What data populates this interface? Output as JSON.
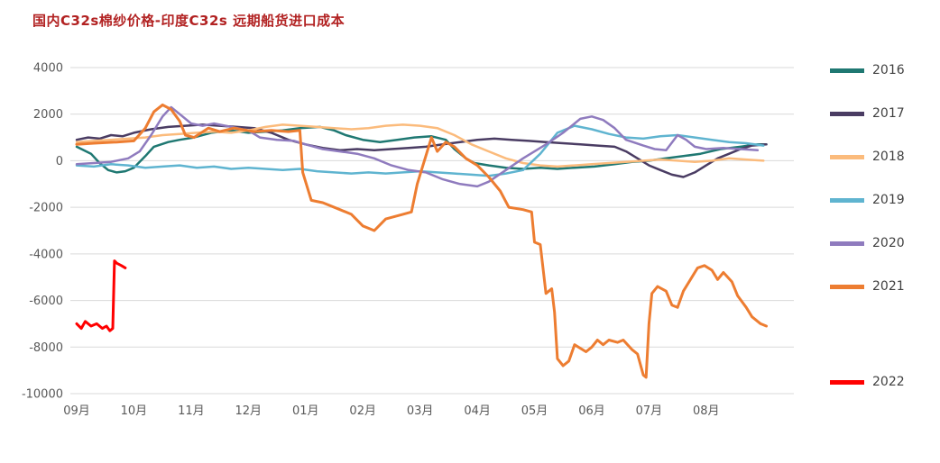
{
  "colors": {
    "title": "#B22222",
    "axis_text": "#595959",
    "gridline": "#D9D9D9"
  },
  "chart_data": {
    "type": "line",
    "title": "国内C32s棉纱价格-印度C32s 远期船货进口成本",
    "xlabel": "",
    "ylabel": "",
    "grid": "horizontal",
    "legend_position": "right",
    "x_tick_labels": [
      "09月",
      "10月",
      "11月",
      "12月",
      "01月",
      "02月",
      "03月",
      "04月",
      "05月",
      "06月",
      "07月",
      "08月"
    ],
    "y_ticks": [
      4000,
      2000,
      0,
      -2000,
      -4000,
      -6000,
      -8000,
      -10000
    ],
    "ylim": [
      -10000,
      4000
    ],
    "xlim": [
      0,
      12.5
    ],
    "series": [
      {
        "name": "2016",
        "color": "#1F7872",
        "width": 2.5,
        "x": [
          0,
          0.25,
          0.4,
          0.55,
          0.7,
          0.85,
          1.0,
          1.2,
          1.35,
          1.6,
          1.8,
          2.05,
          2.35,
          2.7,
          3.0,
          3.3,
          3.6,
          3.9,
          4.25,
          4.5,
          4.7,
          5.0,
          5.3,
          5.6,
          5.9,
          6.2,
          6.45,
          6.6,
          6.8,
          6.95,
          7.2,
          7.5,
          7.8,
          8.1,
          8.4,
          8.7,
          9.05,
          9.4,
          9.7,
          10.0,
          10.3,
          10.6,
          10.9,
          11.25,
          11.6,
          11.9,
          12.05
        ],
        "values": [
          600,
          300,
          -100,
          -400,
          -500,
          -450,
          -300,
          200,
          600,
          800,
          900,
          1000,
          1200,
          1300,
          1200,
          1250,
          1300,
          1400,
          1450,
          1300,
          1100,
          900,
          800,
          900,
          1000,
          1050,
          900,
          500,
          100,
          -100,
          -200,
          -300,
          -350,
          -300,
          -350,
          -300,
          -250,
          -150,
          -50,
          0,
          100,
          200,
          300,
          500,
          600,
          700,
          700
        ]
      },
      {
        "name": "2017",
        "color": "#4A3C63",
        "width": 2.5,
        "x": [
          0,
          0.2,
          0.4,
          0.6,
          0.8,
          1.0,
          1.3,
          1.6,
          1.9,
          2.2,
          2.5,
          2.8,
          3.1,
          3.4,
          3.7,
          4.0,
          4.3,
          4.6,
          4.9,
          5.2,
          5.5,
          5.8,
          6.1,
          6.4,
          6.7,
          7.0,
          7.3,
          7.6,
          7.9,
          8.2,
          8.5,
          8.8,
          9.1,
          9.4,
          9.6,
          9.8,
          10.0,
          10.2,
          10.4,
          10.6,
          10.8,
          11.0,
          11.2,
          11.4,
          11.6,
          11.8,
          12.05
        ],
        "values": [
          900,
          1000,
          950,
          1100,
          1050,
          1200,
          1350,
          1450,
          1500,
          1550,
          1500,
          1450,
          1400,
          1200,
          900,
          700,
          550,
          450,
          500,
          450,
          500,
          550,
          600,
          700,
          800,
          900,
          950,
          900,
          850,
          800,
          750,
          700,
          650,
          600,
          400,
          100,
          -200,
          -400,
          -600,
          -700,
          -500,
          -200,
          100,
          300,
          500,
          650,
          700
        ]
      },
      {
        "name": "2018",
        "color": "#FBBB7C",
        "width": 2.5,
        "x": [
          0,
          0.3,
          0.6,
          0.9,
          1.2,
          1.5,
          1.8,
          2.1,
          2.4,
          2.7,
          3.0,
          3.3,
          3.6,
          3.9,
          4.2,
          4.5,
          4.8,
          5.1,
          5.4,
          5.7,
          6.0,
          6.3,
          6.6,
          6.9,
          7.2,
          7.5,
          7.8,
          8.1,
          8.4,
          8.7,
          9.0,
          9.3,
          9.6,
          9.9,
          10.2,
          10.5,
          10.8,
          11.1,
          11.4,
          11.7,
          12.0
        ],
        "values": [
          800,
          850,
          900,
          950,
          1000,
          1100,
          1150,
          1200,
          1250,
          1200,
          1300,
          1450,
          1550,
          1500,
          1450,
          1400,
          1350,
          1400,
          1500,
          1550,
          1500,
          1400,
          1100,
          700,
          400,
          100,
          -100,
          -200,
          -250,
          -200,
          -150,
          -100,
          -50,
          0,
          50,
          0,
          -50,
          0,
          100,
          50,
          0
        ]
      },
      {
        "name": "2019",
        "color": "#5FB4D0",
        "width": 2.5,
        "x": [
          0,
          0.3,
          0.6,
          0.9,
          1.2,
          1.5,
          1.8,
          2.1,
          2.4,
          2.7,
          3.0,
          3.3,
          3.6,
          3.9,
          4.2,
          4.5,
          4.8,
          5.1,
          5.4,
          5.7,
          6.0,
          6.3,
          6.6,
          6.9,
          7.2,
          7.5,
          7.8,
          8.1,
          8.4,
          8.7,
          9.0,
          9.3,
          9.6,
          9.9,
          10.2,
          10.5,
          10.8,
          11.1,
          11.4,
          11.7,
          12.0
        ],
        "values": [
          -200,
          -250,
          -150,
          -200,
          -300,
          -250,
          -200,
          -300,
          -250,
          -350,
          -300,
          -350,
          -400,
          -350,
          -450,
          -500,
          -550,
          -500,
          -550,
          -500,
          -450,
          -500,
          -550,
          -600,
          -650,
          -550,
          -400,
          300,
          1200,
          1500,
          1350,
          1150,
          1000,
          950,
          1050,
          1100,
          1000,
          900,
          800,
          750,
          650
        ]
      },
      {
        "name": "2020",
        "color": "#8F7BBE",
        "width": 2.5,
        "x": [
          0,
          0.3,
          0.6,
          0.9,
          1.1,
          1.3,
          1.5,
          1.65,
          1.8,
          2.0,
          2.2,
          2.4,
          2.7,
          3.0,
          3.2,
          3.5,
          3.8,
          4.0,
          4.3,
          4.6,
          4.9,
          5.2,
          5.5,
          5.8,
          6.1,
          6.4,
          6.7,
          7.0,
          7.2,
          7.5,
          7.8,
          8.0,
          8.2,
          8.5,
          8.8,
          9.0,
          9.2,
          9.4,
          9.6,
          9.9,
          10.1,
          10.3,
          10.5,
          10.65,
          10.8,
          11.0,
          11.3,
          11.6,
          11.9
        ],
        "values": [
          -150,
          -100,
          -50,
          100,
          400,
          1100,
          1900,
          2300,
          2000,
          1600,
          1500,
          1600,
          1450,
          1300,
          1000,
          900,
          850,
          700,
          500,
          400,
          300,
          100,
          -200,
          -400,
          -500,
          -800,
          -1000,
          -1100,
          -900,
          -400,
          100,
          400,
          700,
          1200,
          1800,
          1900,
          1750,
          1400,
          900,
          650,
          500,
          450,
          1100,
          900,
          600,
          500,
          550,
          500,
          450
        ]
      },
      {
        "name": "2021",
        "color": "#ED7D31",
        "width": 3,
        "x": [
          0,
          0.3,
          0.7,
          1.0,
          1.2,
          1.35,
          1.5,
          1.65,
          1.8,
          1.9,
          2.05,
          2.3,
          2.5,
          2.75,
          3.1,
          3.4,
          3.7,
          3.9,
          3.95,
          4.1,
          4.3,
          4.6,
          4.8,
          5.0,
          5.2,
          5.4,
          5.7,
          5.85,
          5.95,
          6.1,
          6.2,
          6.3,
          6.45,
          6.6,
          6.8,
          7.0,
          7.2,
          7.4,
          7.55,
          7.8,
          7.95,
          8.0,
          8.1,
          8.2,
          8.3,
          8.35,
          8.4,
          8.5,
          8.6,
          8.7,
          8.9,
          9.0,
          9.1,
          9.2,
          9.3,
          9.45,
          9.55,
          9.7,
          9.8,
          9.9,
          9.95,
          10.0,
          10.05,
          10.15,
          10.3,
          10.4,
          10.5,
          10.6,
          10.75,
          10.85,
          10.97,
          11.1,
          11.2,
          11.3,
          11.45,
          11.55,
          11.7,
          11.8,
          11.95,
          12.05
        ],
        "values": [
          700,
          750,
          800,
          850,
          1400,
          2100,
          2400,
          2200,
          1700,
          1100,
          1000,
          1400,
          1250,
          1400,
          1250,
          1300,
          1250,
          1300,
          -500,
          -1700,
          -1800,
          -2100,
          -2300,
          -2800,
          -3000,
          -2500,
          -2300,
          -2200,
          -1000,
          200,
          1000,
          400,
          800,
          600,
          100,
          -200,
          -700,
          -1300,
          -2000,
          -2100,
          -2200,
          -3500,
          -3600,
          -5700,
          -5500,
          -6500,
          -8500,
          -8800,
          -8600,
          -7900,
          -8200,
          -8000,
          -7700,
          -7900,
          -7700,
          -7800,
          -7700,
          -8100,
          -8300,
          -9200,
          -9300,
          -7000,
          -5700,
          -5400,
          -5600,
          -6200,
          -6300,
          -5600,
          -5000,
          -4600,
          -4500,
          -4700,
          -5100,
          -4800,
          -5200,
          -5800,
          -6300,
          -6700,
          -7000,
          -7100
        ]
      },
      {
        "name": "2022",
        "color": "#FF0000",
        "width": 3,
        "x": [
          0,
          0.08,
          0.15,
          0.25,
          0.35,
          0.45,
          0.52,
          0.58,
          0.63,
          0.66,
          0.7,
          0.78,
          0.85
        ],
        "values": [
          -7000,
          -7200,
          -6900,
          -7100,
          -7000,
          -7200,
          -7100,
          -7300,
          -7200,
          -4300,
          -4400,
          -4500,
          -4600
        ]
      }
    ]
  }
}
